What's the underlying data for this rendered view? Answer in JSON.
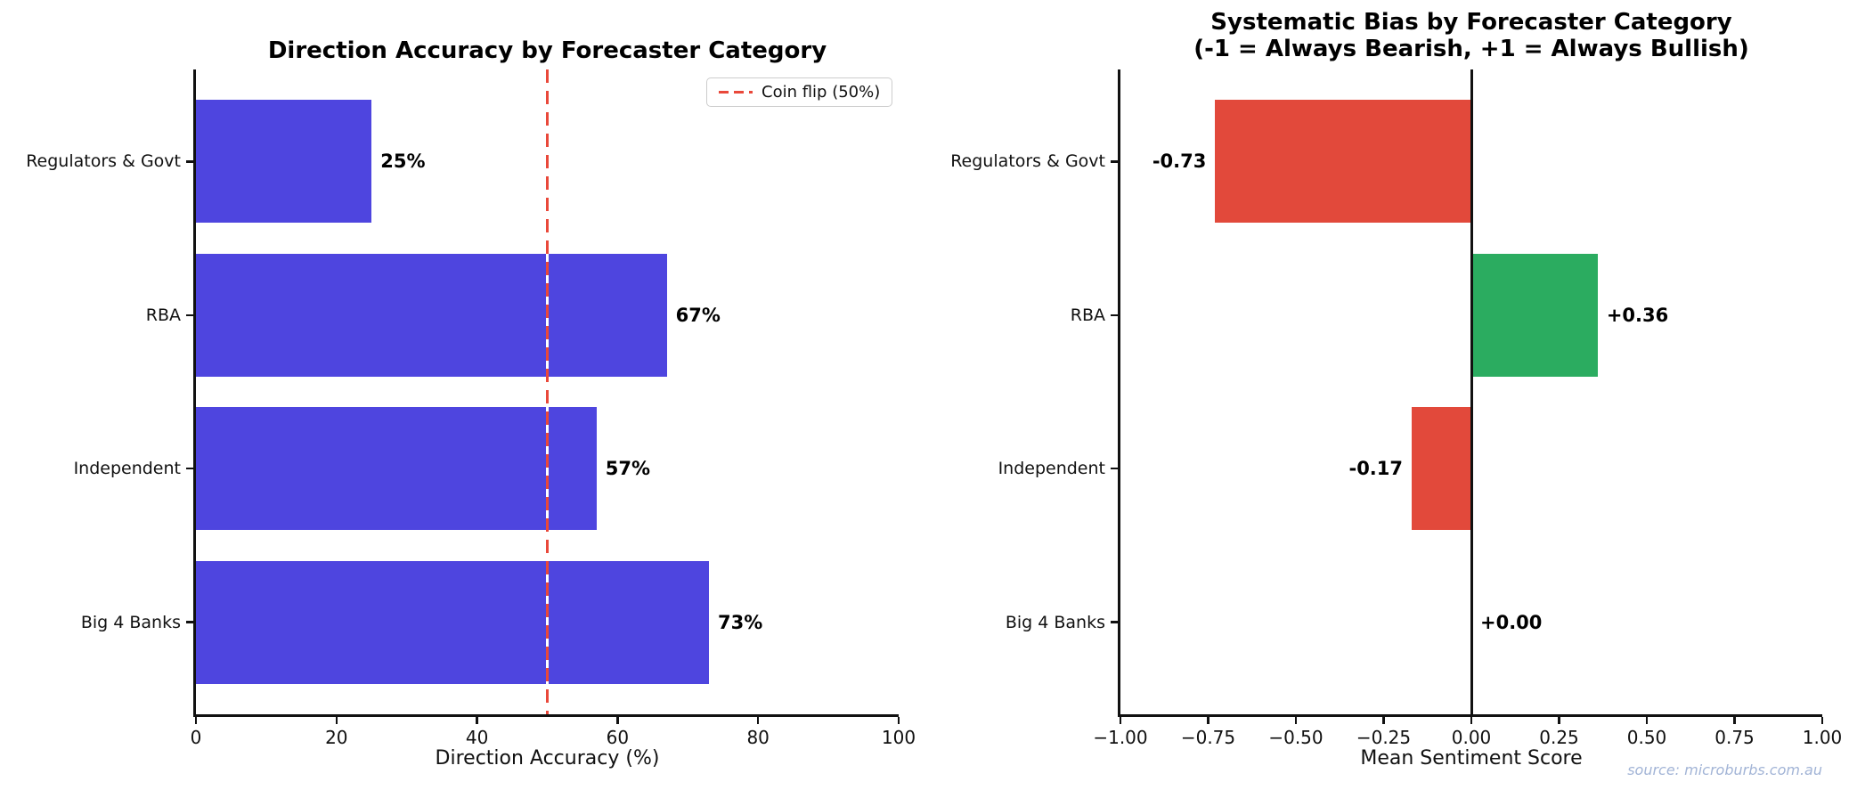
{
  "figure": {
    "source_note": "source: microburbs.com.au",
    "colors": {
      "bar_blue": "#4E45DF",
      "bar_red": "#E2493B",
      "bar_green": "#2BAC60",
      "reference_red": "#E9483A",
      "axis": "#111111",
      "legend_border": "#CCCCCC",
      "source_text": "#A2B4D6"
    }
  },
  "chart_data": [
    {
      "type": "bar",
      "orientation": "horizontal",
      "title": "Direction Accuracy by Forecaster Category",
      "categories": [
        "Regulators & Govt",
        "RBA",
        "Independent",
        "Big 4 Banks"
      ],
      "values": [
        25,
        67,
        57,
        73
      ],
      "value_labels": [
        "25%",
        "67%",
        "57%",
        "73%"
      ],
      "xlabel": "Direction Accuracy (%)",
      "xlim": [
        0,
        100
      ],
      "xticks": [
        0,
        20,
        40,
        60,
        80,
        100
      ],
      "xtick_labels": [
        "0",
        "20",
        "40",
        "60",
        "80",
        "100"
      ],
      "bar_color_key": "bar_blue",
      "grid": false,
      "reference_line": {
        "value": 50,
        "style": "dashed",
        "color_key": "reference_red",
        "label": "Coin flip (50%)"
      },
      "legend": {
        "visible": true,
        "position": "upper-right",
        "entries": [
          "Coin flip (50%)"
        ]
      }
    },
    {
      "type": "bar",
      "orientation": "horizontal",
      "title": "Systematic Bias by Forecaster Category",
      "title_line2": "(-1 = Always Bearish, +1 = Always Bullish)",
      "categories": [
        "Regulators & Govt",
        "RBA",
        "Independent",
        "Big 4 Banks"
      ],
      "values": [
        -0.73,
        0.36,
        -0.17,
        0.0
      ],
      "value_labels": [
        "-0.73",
        "+0.36",
        "-0.17",
        "+0.00"
      ],
      "xlabel": "Mean Sentiment Score",
      "xlim": [
        -1,
        1
      ],
      "xticks": [
        -1.0,
        -0.75,
        -0.5,
        -0.25,
        0.0,
        0.25,
        0.5,
        0.75,
        1.0
      ],
      "xtick_labels": [
        "−1.00",
        "−0.75",
        "−0.50",
        "−0.25",
        "0.00",
        "0.25",
        "0.50",
        "0.75",
        "1.00"
      ],
      "bar_colors_by_sign": {
        "positive": "bar_green",
        "negative": "bar_red",
        "zero": "bar_green"
      },
      "grid": false,
      "zero_line": {
        "value": 0,
        "style": "solid",
        "color_key": "axis"
      },
      "legend": {
        "visible": false
      }
    }
  ]
}
